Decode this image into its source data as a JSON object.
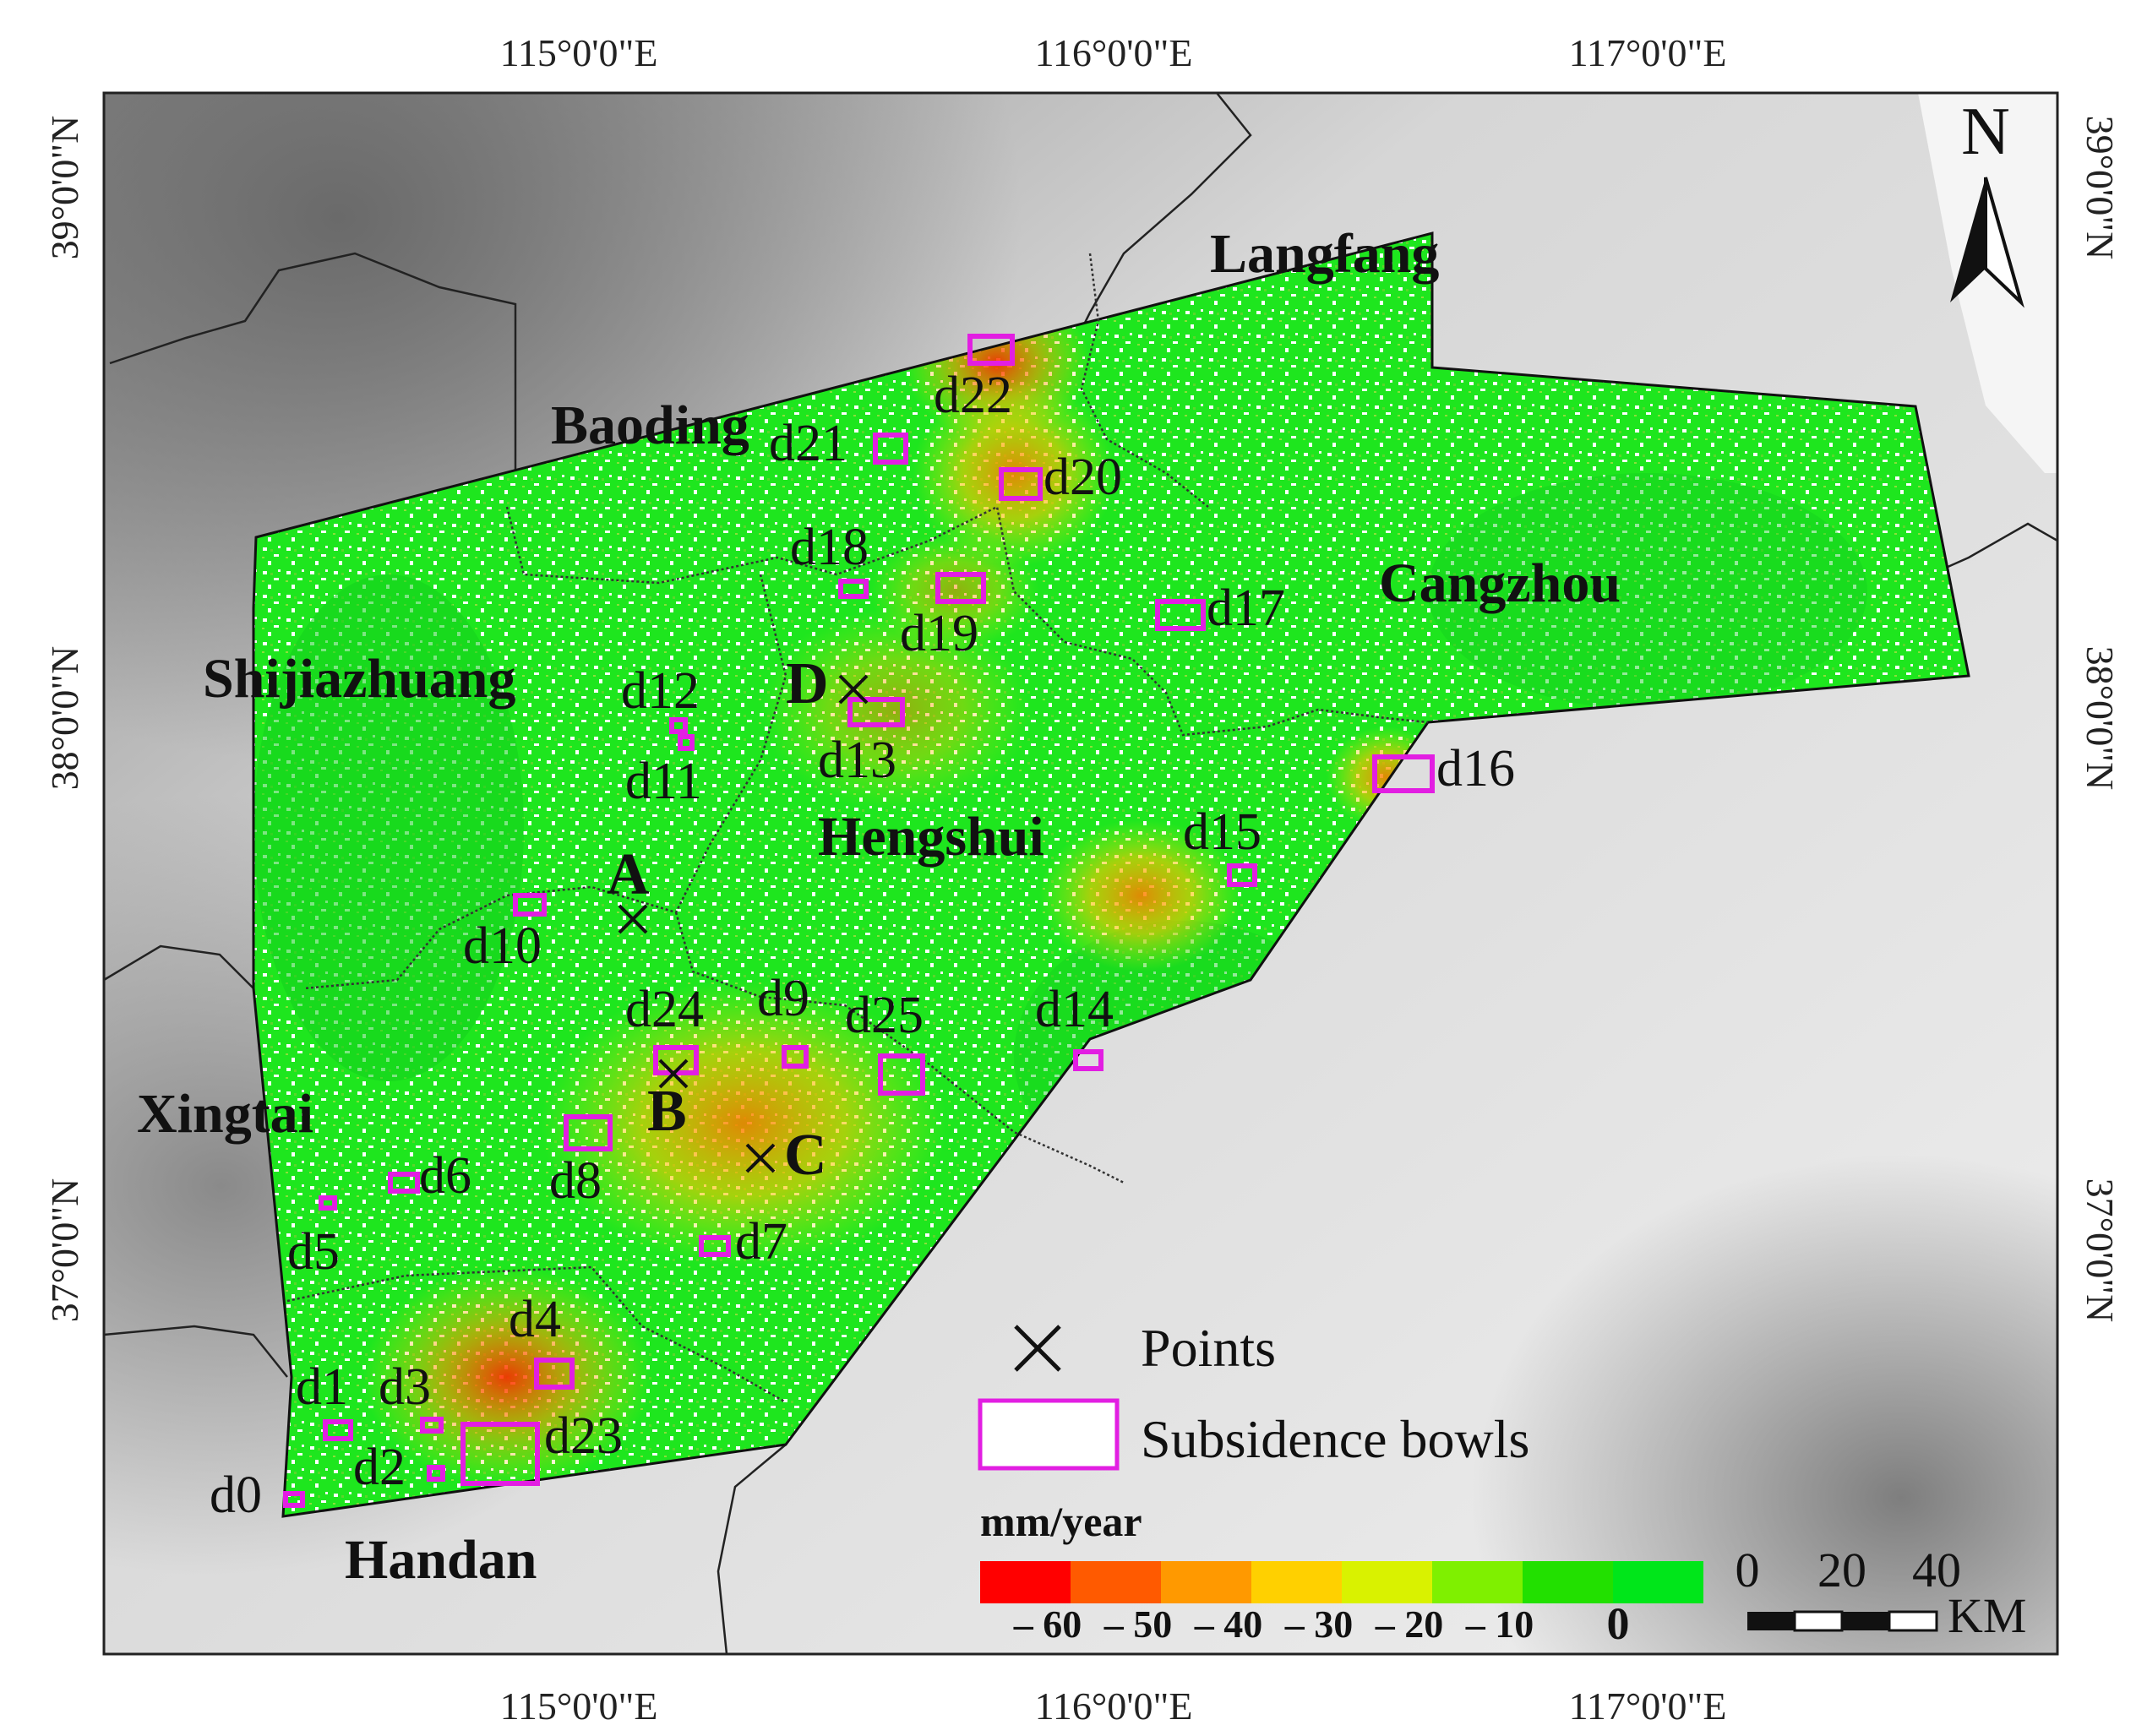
{
  "axes": {
    "top_lon": [
      "115°0'0\"E",
      "116°0'0\"E",
      "117°0'0\"E"
    ],
    "bottom_lon": [
      "115°0'0\"E",
      "116°0'0\"E",
      "117°0'0\"E"
    ],
    "left_lat": [
      "39°0'0\"N",
      "38°0'0\"N",
      "37°0'0\"N"
    ],
    "right_lat": [
      "39°0'0\"N",
      "38°0'0\"N",
      "37°0'0\"N"
    ]
  },
  "north_arrow": "N",
  "cities": [
    "Langfang",
    "Baoding",
    "Cangzhou",
    "Shijiazhuang",
    "Hengshui",
    "Xingtai",
    "Handan"
  ],
  "bowls": [
    "d0",
    "d1",
    "d2",
    "d3",
    "d4",
    "d5",
    "d6",
    "d7",
    "d8",
    "d9",
    "d10",
    "d11",
    "d12",
    "d13",
    "d14",
    "d15",
    "d16",
    "d17",
    "d18",
    "d19",
    "d20",
    "d21",
    "d22",
    "d23",
    "d24",
    "d25"
  ],
  "points": [
    "A",
    "B",
    "C",
    "D"
  ],
  "legend": {
    "points_label": "Points",
    "bowls_label": "Subsidence bowls"
  },
  "colorbar": {
    "unit": "mm/year",
    "colors": [
      "#ff0000",
      "#ff5a00",
      "#ff9900",
      "#ffd000",
      "#d9f200",
      "#7ff000",
      "#22e000",
      "#00e61a"
    ],
    "ticks": [
      "– 60",
      "– 50",
      "– 40",
      "– 30",
      "– 20",
      "– 10",
      "0"
    ]
  },
  "scalebar": {
    "ticks": [
      "0",
      "20",
      "40"
    ],
    "unit": "KM"
  }
}
